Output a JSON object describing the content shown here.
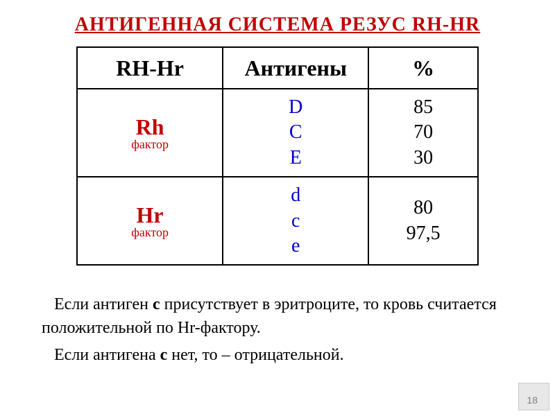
{
  "title": "АНТИГЕННАЯ СИСТЕМА РЕЗУС RH-HR",
  "table": {
    "headers": {
      "col1": "RH-Hr",
      "col2": "Антигены",
      "col3": "%"
    },
    "rows": [
      {
        "label": "Rh",
        "sublabel": "фактор",
        "antigens": [
          "D",
          "C",
          "E"
        ],
        "antigen_color": "#0000cc",
        "percents": [
          "85",
          "70",
          "30"
        ]
      },
      {
        "label": "Hr",
        "sublabel": "фактор",
        "antigens": [
          "d",
          "c",
          "e"
        ],
        "antigen_color": "#0000cc",
        "percents": [
          "",
          "80",
          "97,5"
        ]
      }
    ]
  },
  "description": {
    "p1_before": "Если антиген ",
    "p1_bold": "с",
    "p1_after": " присутствует в эритроците, то кровь считается положительной по Hr-фактору.",
    "p2_before": "Если антигена ",
    "p2_bold": "с",
    "p2_after": " нет, то – отрицательной."
  },
  "page_number": "18",
  "colors": {
    "title_red": "#c00000",
    "antigen_blue": "#0000cc",
    "text_black": "#000000",
    "page_gray": "#808080"
  }
}
